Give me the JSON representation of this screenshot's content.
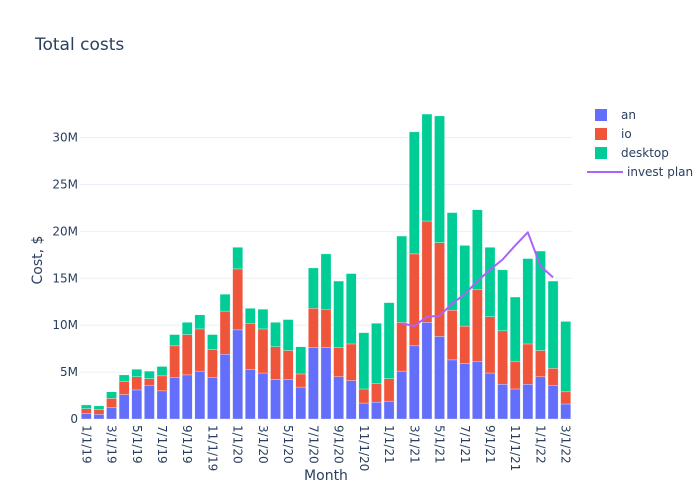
{
  "chart_data": {
    "type": "bar",
    "stacked": true,
    "title": "Total costs",
    "xlabel": "Month",
    "ylabel": "Cost, $",
    "ylim": [
      0,
      34000000
    ],
    "yticks": [
      0,
      5000000,
      10000000,
      15000000,
      20000000,
      25000000,
      30000000
    ],
    "ytick_labels": [
      "0",
      "5M",
      "10M",
      "15M",
      "20M",
      "25M",
      "30M"
    ],
    "grid": true,
    "legend_position": "top-right",
    "categories": [
      "1/1/19",
      "2/1/19",
      "3/1/19",
      "4/1/19",
      "5/1/19",
      "6/1/19",
      "7/1/19",
      "8/1/19",
      "9/1/19",
      "10/1/19",
      "11/1/19",
      "12/1/19",
      "1/1/20",
      "2/1/20",
      "3/1/20",
      "4/1/20",
      "5/1/20",
      "6/1/20",
      "7/1/20",
      "8/1/20",
      "9/1/20",
      "10/1/20",
      "11/1/20",
      "12/1/20",
      "1/1/21",
      "2/1/21",
      "3/1/21",
      "4/1/21",
      "5/1/21",
      "6/1/21",
      "7/1/21",
      "8/1/21",
      "9/1/21",
      "10/1/21",
      "11/1/21",
      "12/1/21",
      "1/1/22",
      "2/1/22",
      "3/1/22"
    ],
    "xtick_labels": [
      "1/1/19",
      "3/1/19",
      "5/1/19",
      "7/1/19",
      "9/1/19",
      "11/1/19",
      "1/1/20",
      "3/1/20",
      "5/1/20",
      "7/1/20",
      "9/1/20",
      "11/1/20",
      "1/1/21",
      "3/1/21",
      "5/1/21",
      "7/1/21",
      "9/1/21",
      "11/1/21",
      "1/1/22",
      "3/1/22"
    ],
    "series": [
      {
        "name": "an",
        "type": "bar",
        "color": "#636efa",
        "values": [
          0.6,
          0.5,
          1.2,
          2.6,
          3.1,
          3.6,
          3.0,
          4.4,
          4.7,
          5.1,
          4.4,
          6.9,
          9.5,
          5.3,
          4.9,
          4.2,
          4.2,
          3.4,
          7.6,
          7.6,
          4.5,
          4.1,
          1.7,
          1.8,
          1.9,
          5.1,
          7.8,
          10.3,
          8.8,
          6.3,
          5.9,
          6.1,
          4.9,
          3.7,
          3.2,
          3.7,
          4.5,
          3.6,
          1.6
        ]
      },
      {
        "name": "io",
        "type": "bar",
        "color": "#ef553b",
        "values": [
          0.5,
          0.5,
          1.0,
          1.4,
          1.4,
          0.7,
          1.6,
          3.4,
          4.3,
          4.5,
          3.0,
          4.6,
          6.5,
          4.9,
          4.7,
          3.5,
          3.1,
          1.4,
          4.2,
          4.1,
          3.1,
          3.9,
          1.5,
          2.0,
          2.4,
          5.2,
          9.8,
          10.8,
          10.0,
          5.3,
          4.0,
          7.7,
          6.0,
          5.7,
          2.9,
          4.3,
          2.8,
          1.8,
          1.3
        ]
      },
      {
        "name": "desktop",
        "type": "bar",
        "color": "#00cc96",
        "values": [
          0.4,
          0.4,
          0.7,
          0.7,
          0.8,
          0.8,
          1.0,
          1.2,
          1.3,
          1.5,
          1.6,
          1.8,
          2.3,
          1.6,
          2.1,
          2.6,
          3.3,
          2.9,
          4.3,
          5.9,
          7.1,
          7.5,
          6.0,
          6.4,
          8.1,
          9.2,
          13.0,
          11.4,
          13.5,
          10.4,
          8.6,
          8.5,
          7.4,
          6.5,
          6.9,
          9.1,
          10.6,
          9.3,
          7.5
        ]
      },
      {
        "name": "invest plan",
        "type": "line",
        "color": "#ab63fa",
        "x": [
          "2/1/21",
          "3/1/21",
          "4/1/21",
          "5/1/21",
          "6/1/21",
          "7/1/21",
          "8/1/21",
          "9/1/21",
          "10/1/21",
          "11/1/21",
          "12/1/21",
          "1/1/22",
          "2/1/22"
        ],
        "values": [
          10.2,
          9.9,
          10.9,
          11.0,
          12.3,
          13.3,
          14.7,
          15.9,
          17.0,
          18.5,
          19.9,
          16.3,
          15.1
        ]
      }
    ],
    "value_unit": "millions of $"
  }
}
